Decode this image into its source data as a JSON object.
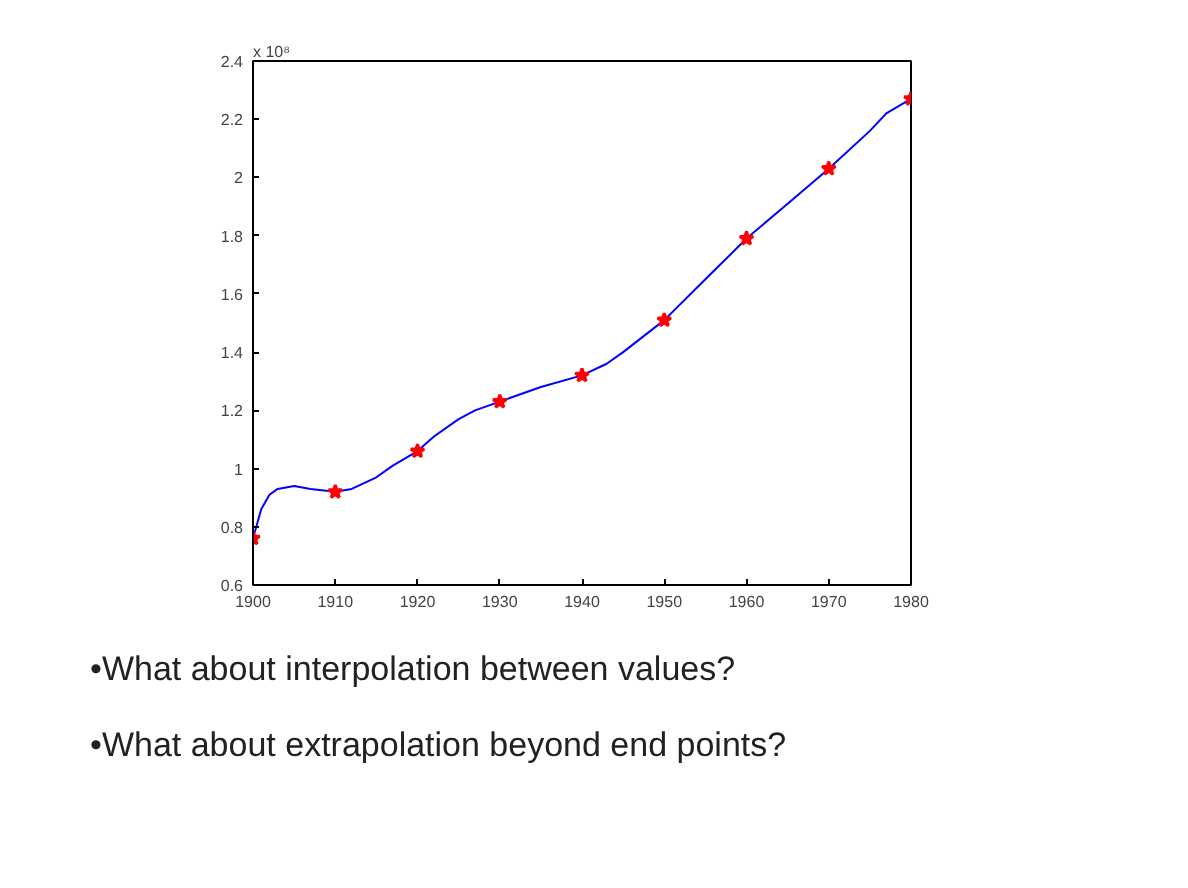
{
  "chart_data": {
    "type": "line",
    "xlim": [
      1900,
      1980
    ],
    "xticks": [
      1900,
      1910,
      1920,
      1930,
      1940,
      1950,
      1960,
      1970,
      1980
    ],
    "ylim": [
      0.6,
      2.4
    ],
    "yticks": [
      0.6,
      0.8,
      1,
      1.2,
      1.4,
      1.6,
      1.8,
      2,
      2.2,
      2.4
    ],
    "grid": false,
    "series": [
      {
        "color": "#0000ff",
        "marker": "none",
        "x": [
          1900,
          1901,
          1902,
          1903,
          1905,
          1907,
          1910,
          1912,
          1915,
          1917,
          1920,
          1922,
          1925,
          1927,
          1930,
          1935,
          1940,
          1943,
          1945,
          1950,
          1955,
          1960,
          1965,
          1970,
          1975,
          1977,
          1980
        ],
        "values": [
          0.76,
          0.86,
          0.91,
          0.93,
          0.94,
          0.93,
          0.92,
          0.93,
          0.97,
          1.01,
          1.06,
          1.11,
          1.17,
          1.2,
          1.23,
          1.28,
          1.32,
          1.36,
          1.4,
          1.51,
          1.65,
          1.79,
          1.91,
          2.03,
          2.16,
          2.22,
          2.27
        ]
      },
      {
        "type": "scatter",
        "color": "#ff0000",
        "marker": "star",
        "x": [
          1900,
          1910,
          1920,
          1930,
          1940,
          1950,
          1960,
          1970,
          1980
        ],
        "values": [
          0.76,
          0.92,
          1.06,
          1.23,
          1.32,
          1.51,
          1.79,
          2.03,
          2.27
        ]
      }
    ],
    "annotations": [
      "x 10⁸",
      "•What about interpolation between values?",
      "•What about extrapolation beyond end points?"
    ]
  }
}
